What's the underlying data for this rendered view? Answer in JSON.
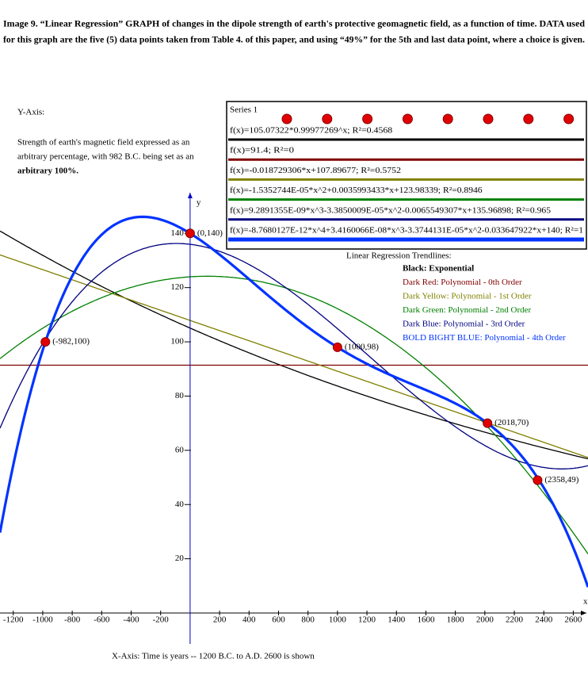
{
  "title_lines": [
    "Image 9. “Linear Regression” GRAPH of changes in the dipole strength of earth's protective geomagnetic field, as a function of time. DATA used",
    "for this graph are the five (5) data points taken from Table 4. of this paper, and using “49%” for the 5th and last data point, where a choice is given."
  ],
  "y_axis_note": {
    "heading": "Y-Axis:",
    "lines": [
      "Strength of earth's magnetic field expressed as an",
      "arbitrary percentage, with 982 B.C. being set as an",
      "arbitrary 100%."
    ]
  },
  "chart_data": {
    "type": "scatter",
    "series": [
      {
        "name": "Series 1",
        "color": "#e00000",
        "x": [
          -982,
          0,
          1000,
          2018,
          2358
        ],
        "values": [
          100,
          140,
          98,
          70,
          49
        ],
        "value_labels": [
          "(-982,100)",
          "(0,140)",
          "(1000,98)",
          "(2018,70)",
          "(2358,49)"
        ]
      }
    ],
    "xlim": [
      -1290,
      2700
    ],
    "ylim": [
      0,
      155
    ],
    "xticks": [
      -1200,
      -1000,
      -800,
      -600,
      -400,
      -200,
      200,
      400,
      600,
      800,
      1000,
      1200,
      1400,
      1600,
      1800,
      2000,
      2200,
      2400,
      2600
    ],
    "yticks": [
      20,
      40,
      60,
      80,
      100,
      120,
      140
    ],
    "x_axis_letter": "x",
    "y_axis_letter": "y",
    "xlabel": "X-Axis: Time is years -- 1200 B.C. to A.D. 2600 is shown",
    "trendlines": [
      {
        "label": "f(x)=105.07322*0.99977269^x; R²=0.4568",
        "color": "#000000",
        "kind": "exp",
        "coef": [
          105.07322,
          0.99977269
        ]
      },
      {
        "label": "f(x)=91.4; R²=0",
        "color": "#800000",
        "kind": "poly",
        "coef": [
          91.4
        ]
      },
      {
        "label": "f(x)=-0.018729306*x+107.89677; R²=0.5752",
        "color": "#808000",
        "kind": "poly",
        "coef": [
          107.89677,
          -0.018729306
        ]
      },
      {
        "label": "f(x)=-1.5352744E-05*x^2+0.0035993433*x+123.98339; R²=0.8946",
        "color": "#008000",
        "kind": "poly",
        "coef": [
          123.98339,
          0.0035993433,
          -1.5352744e-05
        ]
      },
      {
        "label": "f(x)=9.2891355E-09*x^3-3.3850009E-05*x^2-0.0065549307*x+135.96898; R²=0.965",
        "color": "#000080",
        "kind": "poly",
        "coef": [
          135.96898,
          -0.0065549307,
          -3.3850009e-05,
          9.2891355e-09
        ]
      },
      {
        "label": "f(x)=-8.7680127E-12*x^4+3.4160066E-08*x^3-3.3744131E-05*x^2-0.033647922*x+140; R²=1",
        "color": "#0033ff",
        "kind": "poly",
        "bold": true,
        "coef": [
          140,
          -0.033647922,
          -3.3744131e-05,
          3.4160066e-08,
          -8.7680127e-12
        ]
      }
    ],
    "trendline_notes": {
      "heading": "Linear Regression Trendlines:",
      "items": [
        {
          "text": "Black: Exponential",
          "color": "#000000"
        },
        {
          "text": "Dark Red: Polynomial - 0th Order",
          "color": "#800000"
        },
        {
          "text": "Dark Yellow: Polynomial - 1st Order",
          "color": "#808000"
        },
        {
          "text": "Dark Green: Polynomial - 2nd Order",
          "color": "#008000"
        },
        {
          "text": "Dark Blue: Polynomial - 3rd Order",
          "color": "#000080"
        },
        {
          "text": "BOLD BIGHT BLUE: Polynomial - 4th Order",
          "color": "#0033ff"
        }
      ]
    }
  }
}
